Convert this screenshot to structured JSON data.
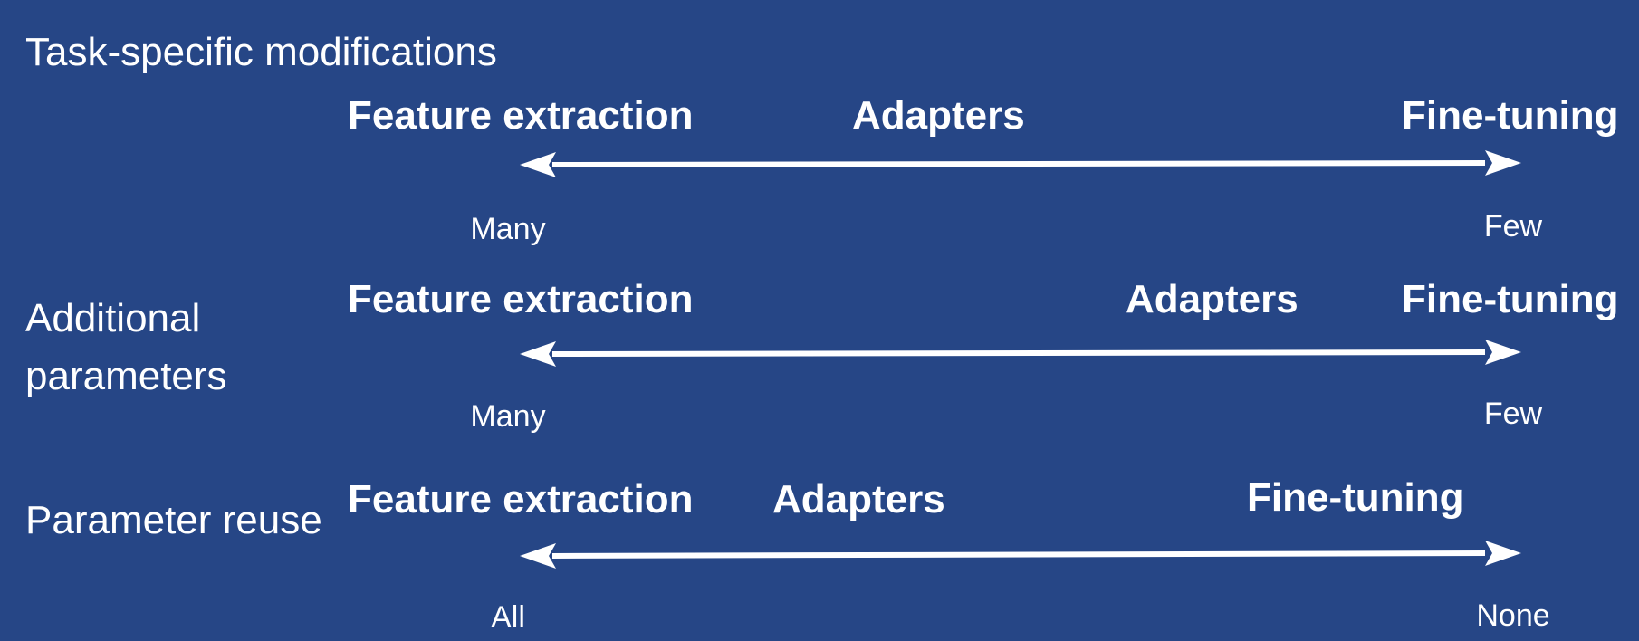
{
  "rows": [
    {
      "label": "Task-specific modifications",
      "left_end": "Many",
      "right_end": "Few",
      "terms": [
        "Feature extraction",
        "Adapters",
        "Fine-tuning"
      ]
    },
    {
      "label": "Additional parameters",
      "left_end": "Many",
      "right_end": "Few",
      "terms": [
        "Feature extraction",
        "Adapters",
        "Fine-tuning"
      ]
    },
    {
      "label": "Parameter reuse",
      "left_end": "All",
      "right_end": "None",
      "terms": [
        "Feature extraction",
        "Adapters",
        "Fine-tuning"
      ]
    }
  ],
  "colors": {
    "background": "#264686",
    "foreground": "#ffffff"
  }
}
